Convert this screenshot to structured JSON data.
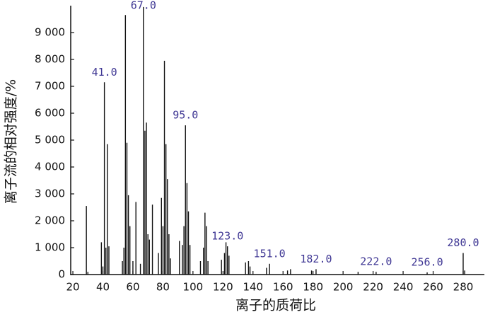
{
  "chart_data": {
    "type": "bar",
    "x_label": "离子的质荷比",
    "y_label": "离子流的相对强度/%",
    "x": [
      29,
      30,
      39,
      40,
      41,
      42,
      43,
      44,
      53,
      54,
      55,
      56,
      57,
      58,
      60,
      62,
      65,
      67,
      68,
      69,
      70,
      71,
      73,
      77,
      79,
      80,
      81,
      82,
      83,
      84,
      85,
      91,
      93,
      94,
      95,
      96,
      97,
      98,
      105,
      107,
      108,
      109,
      110,
      119,
      121,
      122,
      123,
      124,
      135,
      137,
      138,
      149,
      151,
      163,
      165,
      179,
      182,
      210,
      222,
      256,
      280,
      281
    ],
    "values": [
      2550,
      100,
      1200,
      300,
      7150,
      1000,
      4850,
      1050,
      500,
      1000,
      9650,
      4900,
      2950,
      1800,
      500,
      2700,
      400,
      9950,
      5350,
      5650,
      1500,
      1300,
      2600,
      800,
      2850,
      1800,
      7950,
      4850,
      3550,
      1500,
      600,
      1250,
      1100,
      1800,
      5550,
      3400,
      2350,
      1100,
      500,
      1000,
      2300,
      1800,
      500,
      550,
      800,
      1200,
      1050,
      700,
      450,
      500,
      300,
      250,
      400,
      150,
      200,
      150,
      200,
      100,
      100,
      80,
      800,
      150
    ],
    "color": "#111111",
    "annotations": [
      {
        "x": 41,
        "label": "41.0"
      },
      {
        "x": 67,
        "label": "67.0"
      },
      {
        "x": 95,
        "label": "95.0"
      },
      {
        "x": 123,
        "label": "123.0"
      },
      {
        "x": 151,
        "label": "151.0"
      },
      {
        "x": 182,
        "label": "182.0"
      },
      {
        "x": 222,
        "label": "222.0"
      },
      {
        "x": 256,
        "label": "256.0"
      },
      {
        "x": 280,
        "label": "280.0"
      }
    ],
    "xlim": [
      18,
      294
    ],
    "ylim": [
      0,
      10000
    ],
    "xticks": [
      20,
      40,
      60,
      80,
      100,
      120,
      140,
      160,
      180,
      200,
      220,
      240,
      260,
      280
    ],
    "yticks": [
      0,
      {
        "value": 1000,
        "label": "1 000"
      },
      {
        "value": 2000,
        "label": "2 000"
      },
      {
        "value": 3000,
        "label": "3 000"
      },
      {
        "value": 4000,
        "label": "4 000"
      },
      {
        "value": 5000,
        "label": "5 000"
      },
      {
        "value": 6000,
        "label": "6 000"
      },
      {
        "value": 7000,
        "label": "7 000"
      },
      {
        "value": 8000,
        "label": "8 000"
      },
      {
        "value": 9000,
        "label": "9 000"
      }
    ]
  }
}
